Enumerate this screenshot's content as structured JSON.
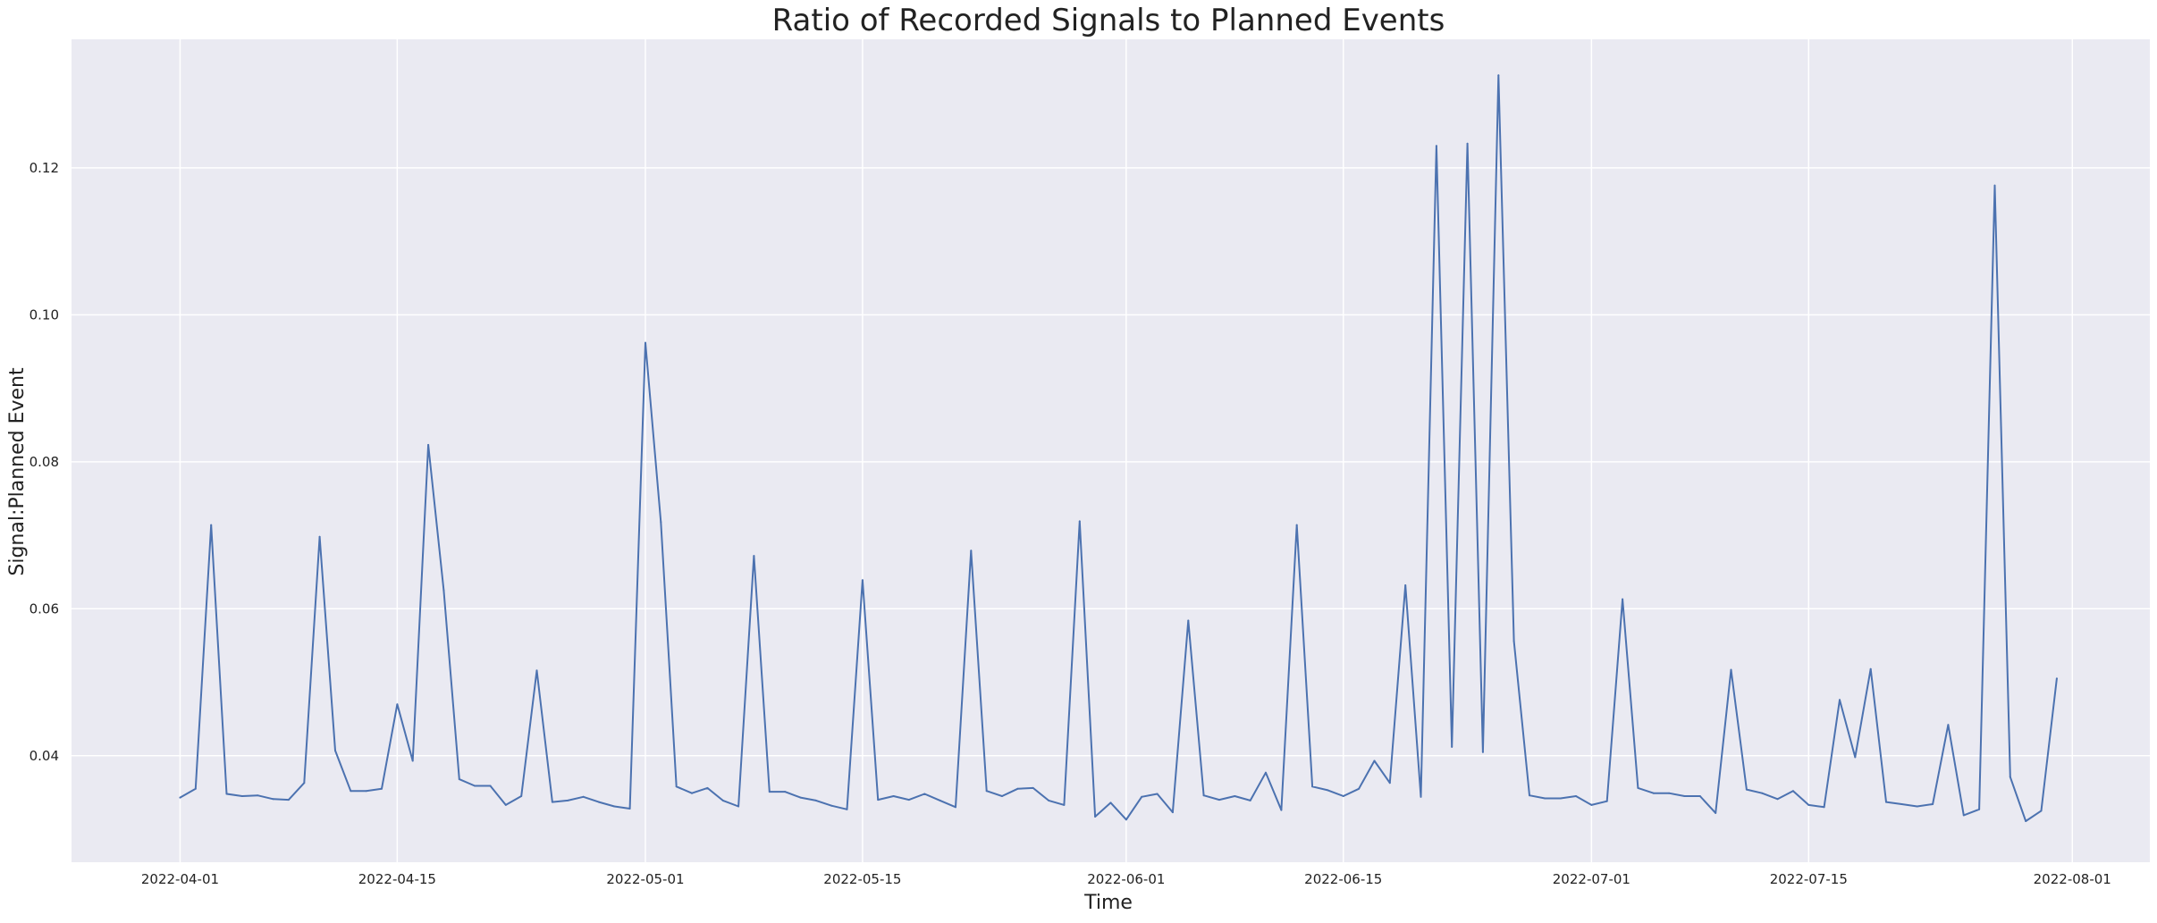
{
  "chart_data": {
    "type": "line",
    "title": "Ratio of Recorded Signals to Planned Events",
    "xlabel": "Time",
    "ylabel": "Signal:Planned Event",
    "x_axis_type": "date",
    "xlim": [
      "2022-03-25",
      "2022-08-06"
    ],
    "ylim": [
      0.0255,
      0.1375
    ],
    "x_ticks": [
      "2022-04-01",
      "2022-04-15",
      "2022-05-01",
      "2022-05-15",
      "2022-06-01",
      "2022-06-15",
      "2022-07-01",
      "2022-07-15",
      "2022-08-01"
    ],
    "y_ticks": [
      0.04,
      0.06,
      0.08,
      0.1,
      0.12
    ],
    "y_tick_labels": [
      "0.04",
      "0.06",
      "0.08",
      "0.10",
      "0.12"
    ],
    "grid": true,
    "legend": "none",
    "colors": {
      "line": "#4c72b0",
      "plot_background": "#eaeaf2",
      "grid": "#ffffff",
      "page_background": "#ffffff"
    },
    "series": [
      {
        "x": [
          "2022-04-01",
          "2022-04-02",
          "2022-04-03",
          "2022-04-04",
          "2022-04-05",
          "2022-04-06",
          "2022-04-07",
          "2022-04-08",
          "2022-04-09",
          "2022-04-10",
          "2022-04-11",
          "2022-04-12",
          "2022-04-13",
          "2022-04-14",
          "2022-04-15",
          "2022-04-16",
          "2022-04-17",
          "2022-04-18",
          "2022-04-19",
          "2022-04-20",
          "2022-04-21",
          "2022-04-22",
          "2022-04-23",
          "2022-04-24",
          "2022-04-25",
          "2022-04-26",
          "2022-04-27",
          "2022-04-28",
          "2022-04-29",
          "2022-04-30",
          "2022-05-01",
          "2022-05-02",
          "2022-05-03",
          "2022-05-04",
          "2022-05-05",
          "2022-05-06",
          "2022-05-07",
          "2022-05-08",
          "2022-05-09",
          "2022-05-10",
          "2022-05-11",
          "2022-05-12",
          "2022-05-13",
          "2022-05-14",
          "2022-05-15",
          "2022-05-16",
          "2022-05-17",
          "2022-05-18",
          "2022-05-19",
          "2022-05-20",
          "2022-05-21",
          "2022-05-22",
          "2022-05-23",
          "2022-05-24",
          "2022-05-25",
          "2022-05-26",
          "2022-05-27",
          "2022-05-28",
          "2022-05-29",
          "2022-05-30",
          "2022-05-31",
          "2022-06-01",
          "2022-06-02",
          "2022-06-03",
          "2022-06-04",
          "2022-06-05",
          "2022-06-06",
          "2022-06-07",
          "2022-06-08",
          "2022-06-09",
          "2022-06-10",
          "2022-06-11",
          "2022-06-12",
          "2022-06-13",
          "2022-06-14",
          "2022-06-15",
          "2022-06-16",
          "2022-06-17",
          "2022-06-18",
          "2022-06-19",
          "2022-06-20",
          "2022-06-21",
          "2022-06-22",
          "2022-06-23",
          "2022-06-24",
          "2022-06-25",
          "2022-06-26",
          "2022-06-27",
          "2022-06-28",
          "2022-06-29",
          "2022-06-30",
          "2022-07-01",
          "2022-07-02",
          "2022-07-03",
          "2022-07-04",
          "2022-07-05",
          "2022-07-06",
          "2022-07-07",
          "2022-07-08",
          "2022-07-09",
          "2022-07-10",
          "2022-07-11",
          "2022-07-12",
          "2022-07-13",
          "2022-07-14",
          "2022-07-15",
          "2022-07-16",
          "2022-07-17",
          "2022-07-18",
          "2022-07-19",
          "2022-07-20",
          "2022-07-21",
          "2022-07-22",
          "2022-07-23",
          "2022-07-24",
          "2022-07-25",
          "2022-07-26",
          "2022-07-27",
          "2022-07-28",
          "2022-07-29",
          "2022-07-30",
          "2022-07-31"
        ],
        "values": [
          0.0343,
          0.0355,
          0.0714,
          0.0348,
          0.0345,
          0.0346,
          0.0341,
          0.034,
          0.0363,
          0.0698,
          0.0407,
          0.0352,
          0.0352,
          0.0355,
          0.047,
          0.0393,
          0.0823,
          0.0625,
          0.0368,
          0.0359,
          0.0359,
          0.0333,
          0.0345,
          0.0516,
          0.0337,
          0.0339,
          0.0344,
          0.0337,
          0.0331,
          0.0328,
          0.0962,
          0.0718,
          0.0358,
          0.0349,
          0.0356,
          0.0339,
          0.0331,
          0.0672,
          0.0351,
          0.0351,
          0.0343,
          0.0339,
          0.0332,
          0.0327,
          0.0639,
          0.034,
          0.0345,
          0.034,
          0.0348,
          0.0339,
          0.033,
          0.0679,
          0.0352,
          0.0345,
          0.0355,
          0.0356,
          0.0339,
          0.0333,
          0.0719,
          0.0317,
          0.0336,
          0.0313,
          0.0344,
          0.0348,
          0.0323,
          0.0584,
          0.0346,
          0.034,
          0.0345,
          0.0339,
          0.0377,
          0.0326,
          0.0714,
          0.0358,
          0.0353,
          0.0345,
          0.0355,
          0.0393,
          0.0363,
          0.0632,
          0.0344,
          0.123,
          0.0412,
          0.1233,
          0.0405,
          0.1326,
          0.0556,
          0.0346,
          0.0342,
          0.0342,
          0.0345,
          0.0333,
          0.0338,
          0.0613,
          0.0356,
          0.0349,
          0.0349,
          0.0345,
          0.0345,
          0.0322,
          0.0517,
          0.0354,
          0.0349,
          0.0341,
          0.0352,
          0.0333,
          0.033,
          0.0476,
          0.0398,
          0.0518,
          0.0337,
          0.0334,
          0.0331,
          0.0334,
          0.0442,
          0.0319,
          0.0327,
          0.1176,
          0.0371,
          0.0311,
          0.0325,
          0.0505
        ]
      }
    ]
  }
}
